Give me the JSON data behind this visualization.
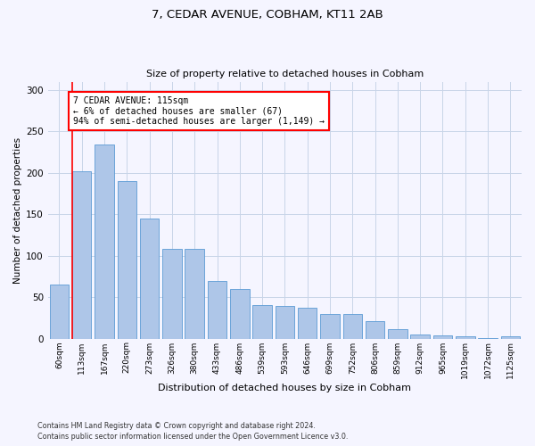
{
  "title1": "7, CEDAR AVENUE, COBHAM, KT11 2AB",
  "title2": "Size of property relative to detached houses in Cobham",
  "xlabel": "Distribution of detached houses by size in Cobham",
  "ylabel": "Number of detached properties",
  "categories": [
    "60sqm",
    "113sqm",
    "167sqm",
    "220sqm",
    "273sqm",
    "326sqm",
    "380sqm",
    "433sqm",
    "486sqm",
    "539sqm",
    "593sqm",
    "646sqm",
    "699sqm",
    "752sqm",
    "806sqm",
    "859sqm",
    "912sqm",
    "965sqm",
    "1019sqm",
    "1072sqm",
    "1125sqm"
  ],
  "values": [
    65,
    202,
    234,
    190,
    145,
    108,
    108,
    69,
    60,
    40,
    39,
    37,
    30,
    30,
    21,
    11,
    5,
    4,
    3,
    1,
    3
  ],
  "bar_color": "#aec6e8",
  "bar_edge_color": "#5b9bd5",
  "annotation_text": "7 CEDAR AVENUE: 115sqm\n← 6% of detached houses are smaller (67)\n94% of semi-detached houses are larger (1,149) →",
  "annotation_box_color": "white",
  "annotation_box_edge_color": "red",
  "vline_color": "red",
  "ylim": [
    0,
    310
  ],
  "yticks": [
    0,
    50,
    100,
    150,
    200,
    250,
    300
  ],
  "footer1": "Contains HM Land Registry data © Crown copyright and database right 2024.",
  "footer2": "Contains public sector information licensed under the Open Government Licence v3.0.",
  "bg_color": "#f5f5ff",
  "grid_color": "#c8d4e8"
}
